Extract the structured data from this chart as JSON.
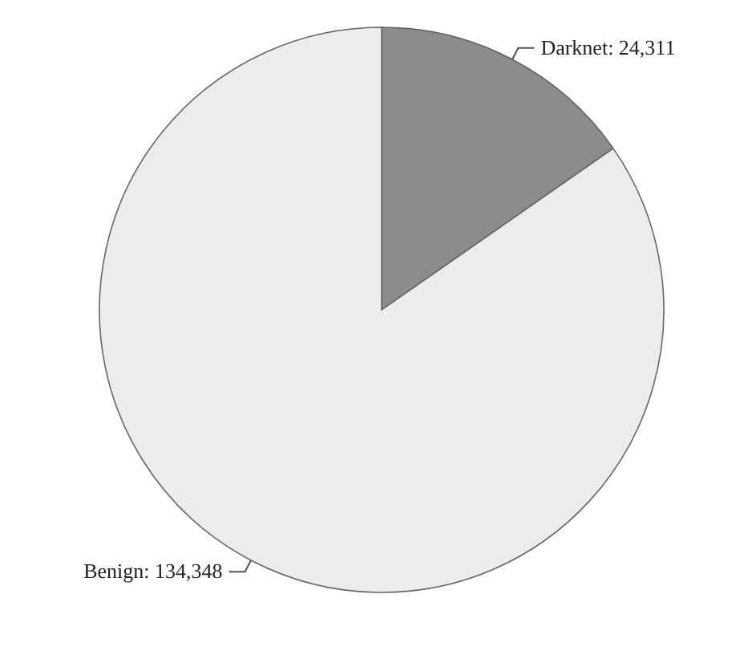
{
  "chart_data": {
    "type": "pie",
    "categories": [
      "Darknet",
      "Benign"
    ],
    "values": [
      24311,
      134348
    ],
    "value_labels": [
      ": 24,311",
      ": 134,348"
    ],
    "colors": [
      "#8c8c8c",
      "#ececec"
    ],
    "legend": false
  }
}
